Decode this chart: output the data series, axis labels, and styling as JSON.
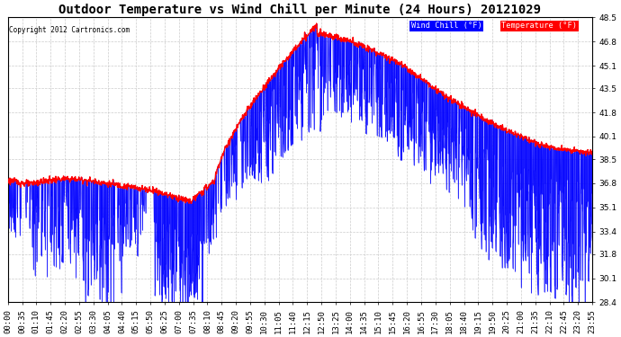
{
  "title": "Outdoor Temperature vs Wind Chill per Minute (24 Hours) 20121029",
  "copyright": "Copyright 2012 Cartronics.com",
  "ylim": [
    28.4,
    48.5
  ],
  "yticks": [
    28.4,
    30.1,
    31.8,
    33.4,
    35.1,
    36.8,
    38.5,
    40.1,
    41.8,
    43.5,
    45.1,
    46.8,
    48.5
  ],
  "xtick_labels": [
    "00:00",
    "00:35",
    "01:10",
    "01:45",
    "02:20",
    "02:55",
    "03:30",
    "04:05",
    "04:40",
    "05:15",
    "05:50",
    "06:25",
    "07:00",
    "07:35",
    "08:10",
    "08:45",
    "09:20",
    "09:55",
    "10:30",
    "11:05",
    "11:40",
    "12:15",
    "12:50",
    "13:25",
    "14:00",
    "14:35",
    "15:10",
    "15:45",
    "16:20",
    "16:55",
    "17:30",
    "18:05",
    "18:40",
    "19:15",
    "19:50",
    "20:25",
    "21:00",
    "21:35",
    "22:10",
    "22:45",
    "23:20",
    "23:55"
  ],
  "temp_color": "#ff0000",
  "wind_color": "#0000ff",
  "legend_wind_bg": "#0000ff",
  "legend_temp_bg": "#ff0000",
  "background_color": "#ffffff",
  "grid_color": "#cccccc",
  "title_fontsize": 10,
  "tick_fontsize": 6.5,
  "figsize": [
    6.9,
    3.75
  ],
  "dpi": 100
}
